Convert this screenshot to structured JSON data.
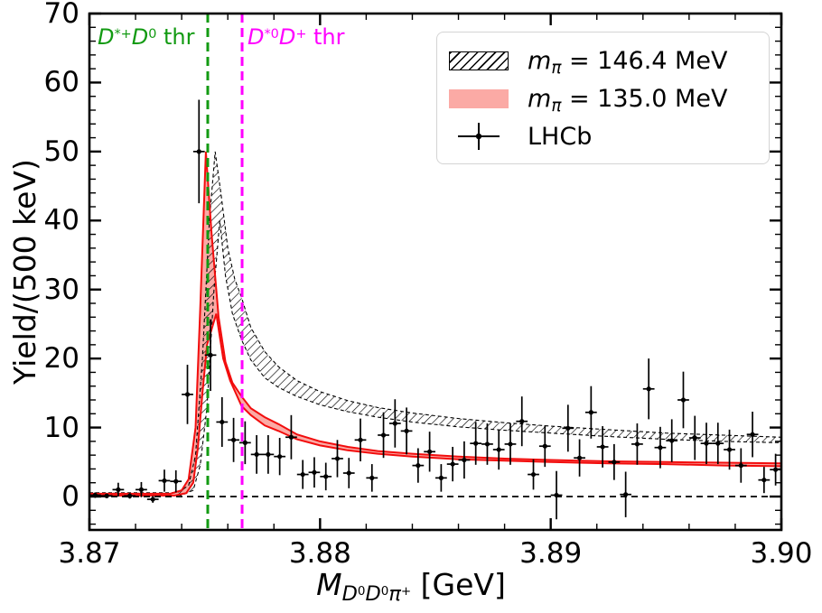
{
  "chart_data": {
    "type": "errorbar_with_bands",
    "title": "",
    "ylabel": "Yield/(500 keV)",
    "xlabel_parts": {
      "m": "M",
      "d1": "D",
      "s1": "0",
      "d2": "D",
      "s2": "0",
      "pi": "π",
      "s3": "+",
      "unit": " [GeV]"
    },
    "xlim": [
      3.87,
      3.9
    ],
    "ylim": [
      -4.8,
      70
    ],
    "x_ticks": {
      "major": [
        3.87,
        3.88,
        3.89,
        3.9
      ],
      "labels": [
        "3.87",
        "3.88",
        "3.89",
        "3.90"
      ],
      "minor_step": 0.002
    },
    "y_ticks": {
      "major": [
        0,
        10,
        20,
        30,
        40,
        50,
        60,
        70
      ],
      "labels": [
        "0",
        "10",
        "20",
        "30",
        "40",
        "50",
        "60",
        "70"
      ],
      "minor_step": 2
    },
    "zero_line_y": 0,
    "grid": false,
    "legend_position": "upper right",
    "style": {
      "red_line": "#f20d0d",
      "red_fill": "#fbaaa5",
      "hatch_color": "#000000",
      "data_color": "#000000",
      "green": "#129a12",
      "magenta": "#ff00ff"
    },
    "thresholds": [
      {
        "x": 3.87513,
        "color": "#129a12",
        "label": {
          "d1": "D",
          "sup1": "*+",
          "d2": "D",
          "sup2": "0",
          "rest": " thr"
        }
      },
      {
        "x": 3.87662,
        "color": "#ff00ff",
        "label": {
          "d1": "D",
          "sup1": "*0",
          "d2": "D",
          "sup2": "+",
          "rest": " thr"
        }
      }
    ],
    "bands": [
      {
        "name": "mpi_146.4_hatched",
        "upper": [
          [
            3.87,
            0.55
          ],
          [
            3.8738,
            0.55
          ],
          [
            3.8743,
            1.6
          ],
          [
            3.8746,
            6
          ],
          [
            3.8749,
            20
          ],
          [
            3.8752,
            40
          ],
          [
            3.87545,
            50
          ],
          [
            3.8757,
            44
          ],
          [
            3.876,
            36
          ],
          [
            3.8763,
            31.5
          ],
          [
            3.8766,
            28.8
          ],
          [
            3.877,
            24.5
          ],
          [
            3.8776,
            21.0
          ],
          [
            3.8782,
            18.8
          ],
          [
            3.879,
            16.8
          ],
          [
            3.88,
            15.2
          ],
          [
            3.8812,
            13.9
          ],
          [
            3.8825,
            12.9
          ],
          [
            3.884,
            12.1
          ],
          [
            3.886,
            11.3
          ],
          [
            3.888,
            10.7
          ],
          [
            3.89,
            10.2
          ],
          [
            3.8925,
            9.7
          ],
          [
            3.895,
            9.2
          ],
          [
            3.8975,
            8.9
          ],
          [
            3.9,
            8.6
          ]
        ],
        "lower": [
          [
            3.87,
            0.2
          ],
          [
            3.874,
            0.2
          ],
          [
            3.8745,
            0.9
          ],
          [
            3.8748,
            4.5
          ],
          [
            3.8751,
            13
          ],
          [
            3.8754,
            30
          ],
          [
            3.87565,
            40
          ],
          [
            3.8759,
            32
          ],
          [
            3.8762,
            26.5
          ],
          [
            3.8766,
            22.7
          ],
          [
            3.877,
            19.8
          ],
          [
            3.8776,
            17.2
          ],
          [
            3.8782,
            15.8
          ],
          [
            3.879,
            14.5
          ],
          [
            3.88,
            13.3
          ],
          [
            3.8812,
            12.3
          ],
          [
            3.8825,
            11.5
          ],
          [
            3.884,
            10.8
          ],
          [
            3.886,
            10.1
          ],
          [
            3.888,
            9.6
          ],
          [
            3.89,
            9.2
          ],
          [
            3.8925,
            8.7
          ],
          [
            3.895,
            8.3
          ],
          [
            3.8975,
            8.0
          ],
          [
            3.9,
            7.8
          ]
        ]
      },
      {
        "name": "mpi_135.0_red",
        "upper": [
          [
            3.87,
            0.4
          ],
          [
            3.8735,
            0.4
          ],
          [
            3.874,
            0.9
          ],
          [
            3.8743,
            2.5
          ],
          [
            3.8746,
            10
          ],
          [
            3.8748,
            27
          ],
          [
            3.87505,
            50
          ],
          [
            3.8753,
            38
          ],
          [
            3.8756,
            26
          ],
          [
            3.8759,
            19.5
          ],
          [
            3.8762,
            16.5
          ],
          [
            3.8766,
            14.5
          ],
          [
            3.877,
            12.8
          ],
          [
            3.8776,
            11.5
          ],
          [
            3.8782,
            10.5
          ],
          [
            3.879,
            9.0
          ],
          [
            3.88,
            8.0
          ],
          [
            3.8812,
            7.2
          ],
          [
            3.8825,
            6.6
          ],
          [
            3.884,
            6.2
          ],
          [
            3.886,
            5.8
          ],
          [
            3.888,
            5.5
          ],
          [
            3.89,
            5.3
          ],
          [
            3.8925,
            5.1
          ],
          [
            3.895,
            5.0
          ],
          [
            3.8975,
            4.9
          ],
          [
            3.9,
            4.8
          ]
        ],
        "lower": [
          [
            3.87,
            0.15
          ],
          [
            3.8737,
            0.15
          ],
          [
            3.8742,
            0.5
          ],
          [
            3.8745,
            2.0
          ],
          [
            3.8747,
            7
          ],
          [
            3.8749,
            15
          ],
          [
            3.8751,
            22
          ],
          [
            3.8755,
            26.5
          ],
          [
            3.8758,
            20
          ],
          [
            3.8761,
            16.8
          ],
          [
            3.8766,
            13.1
          ],
          [
            3.877,
            11.8
          ],
          [
            3.8776,
            10.3
          ],
          [
            3.8782,
            9.5
          ],
          [
            3.879,
            8.3
          ],
          [
            3.88,
            7.4
          ],
          [
            3.8812,
            6.7
          ],
          [
            3.8825,
            6.2
          ],
          [
            3.884,
            5.8
          ],
          [
            3.886,
            5.4
          ],
          [
            3.888,
            5.2
          ],
          [
            3.89,
            5.0
          ],
          [
            3.8925,
            4.8
          ],
          [
            3.895,
            4.7
          ],
          [
            3.8975,
            4.5
          ],
          [
            3.9,
            4.4
          ]
        ]
      }
    ],
    "lhcb_points": {
      "bin_half_width": 0.00025,
      "x": [
        3.87025,
        3.87075,
        3.87125,
        3.87175,
        3.87225,
        3.87275,
        3.87325,
        3.87375,
        3.87425,
        3.87475,
        3.87525,
        3.87575,
        3.87625,
        3.87675,
        3.87725,
        3.87775,
        3.87825,
        3.87875,
        3.87925,
        3.87975,
        3.88025,
        3.88075,
        3.88125,
        3.88175,
        3.88225,
        3.88275,
        3.88325,
        3.88375,
        3.88425,
        3.88475,
        3.88525,
        3.88575,
        3.88625,
        3.88675,
        3.88725,
        3.88775,
        3.88825,
        3.88875,
        3.88925,
        3.88975,
        3.89025,
        3.89075,
        3.89125,
        3.89175,
        3.89225,
        3.89275,
        3.89325,
        3.89375,
        3.89425,
        3.89475,
        3.89525,
        3.89575,
        3.89625,
        3.89675,
        3.89725,
        3.89775,
        3.89825,
        3.89875,
        3.89925,
        3.89975
      ],
      "y": [
        0.2,
        0.1,
        1.0,
        0.1,
        1.0,
        -0.4,
        2.3,
        2.2,
        14.8,
        50.0,
        20.5,
        10.8,
        8.2,
        7.8,
        6.1,
        6.1,
        5.8,
        8.6,
        3.2,
        3.5,
        2.9,
        5.5,
        3.4,
        8.2,
        2.7,
        8.9,
        10.6,
        9.5,
        4.5,
        6.5,
        2.7,
        4.7,
        5.3,
        7.7,
        7.6,
        6.8,
        7.6,
        10.9,
        3.2,
        7.3,
        0.2,
        9.9,
        5.6,
        12.2,
        7.2,
        5.0,
        0.3,
        7.6,
        15.6,
        7.1,
        8.1,
        14.0,
        8.5,
        7.7,
        7.7,
        6.8,
        4.5,
        9.0,
        2.4,
        3.9
      ],
      "yerr": [
        0.4,
        0.3,
        1.0,
        0.4,
        1.1,
        0.5,
        1.6,
        1.6,
        4.3,
        7.5,
        5.2,
        3.6,
        3.2,
        3.1,
        2.8,
        2.8,
        2.7,
        3.2,
        2.1,
        2.2,
        2.0,
        2.7,
        2.2,
        3.1,
        2.0,
        3.3,
        3.5,
        3.4,
        2.5,
        2.9,
        2.0,
        2.5,
        2.7,
        3.1,
        3.0,
        2.9,
        3.0,
        3.6,
        2.2,
        3.0,
        3.5,
        3.4,
        2.7,
        3.8,
        3.0,
        2.6,
        3.3,
        3.0,
        4.4,
        3.0,
        3.1,
        4.1,
        3.2,
        3.0,
        3.0,
        2.9,
        2.5,
        3.3,
        1.9,
        2.3
      ]
    }
  },
  "legend": {
    "items": [
      {
        "swatch": "hatched",
        "var": "m",
        "sub": "π",
        "rest": " = 146.4 MeV"
      },
      {
        "swatch": "red",
        "var": "m",
        "sub": "π",
        "rest": " = 135.0 MeV"
      },
      {
        "swatch": "marker",
        "label": "LHCb"
      }
    ]
  }
}
